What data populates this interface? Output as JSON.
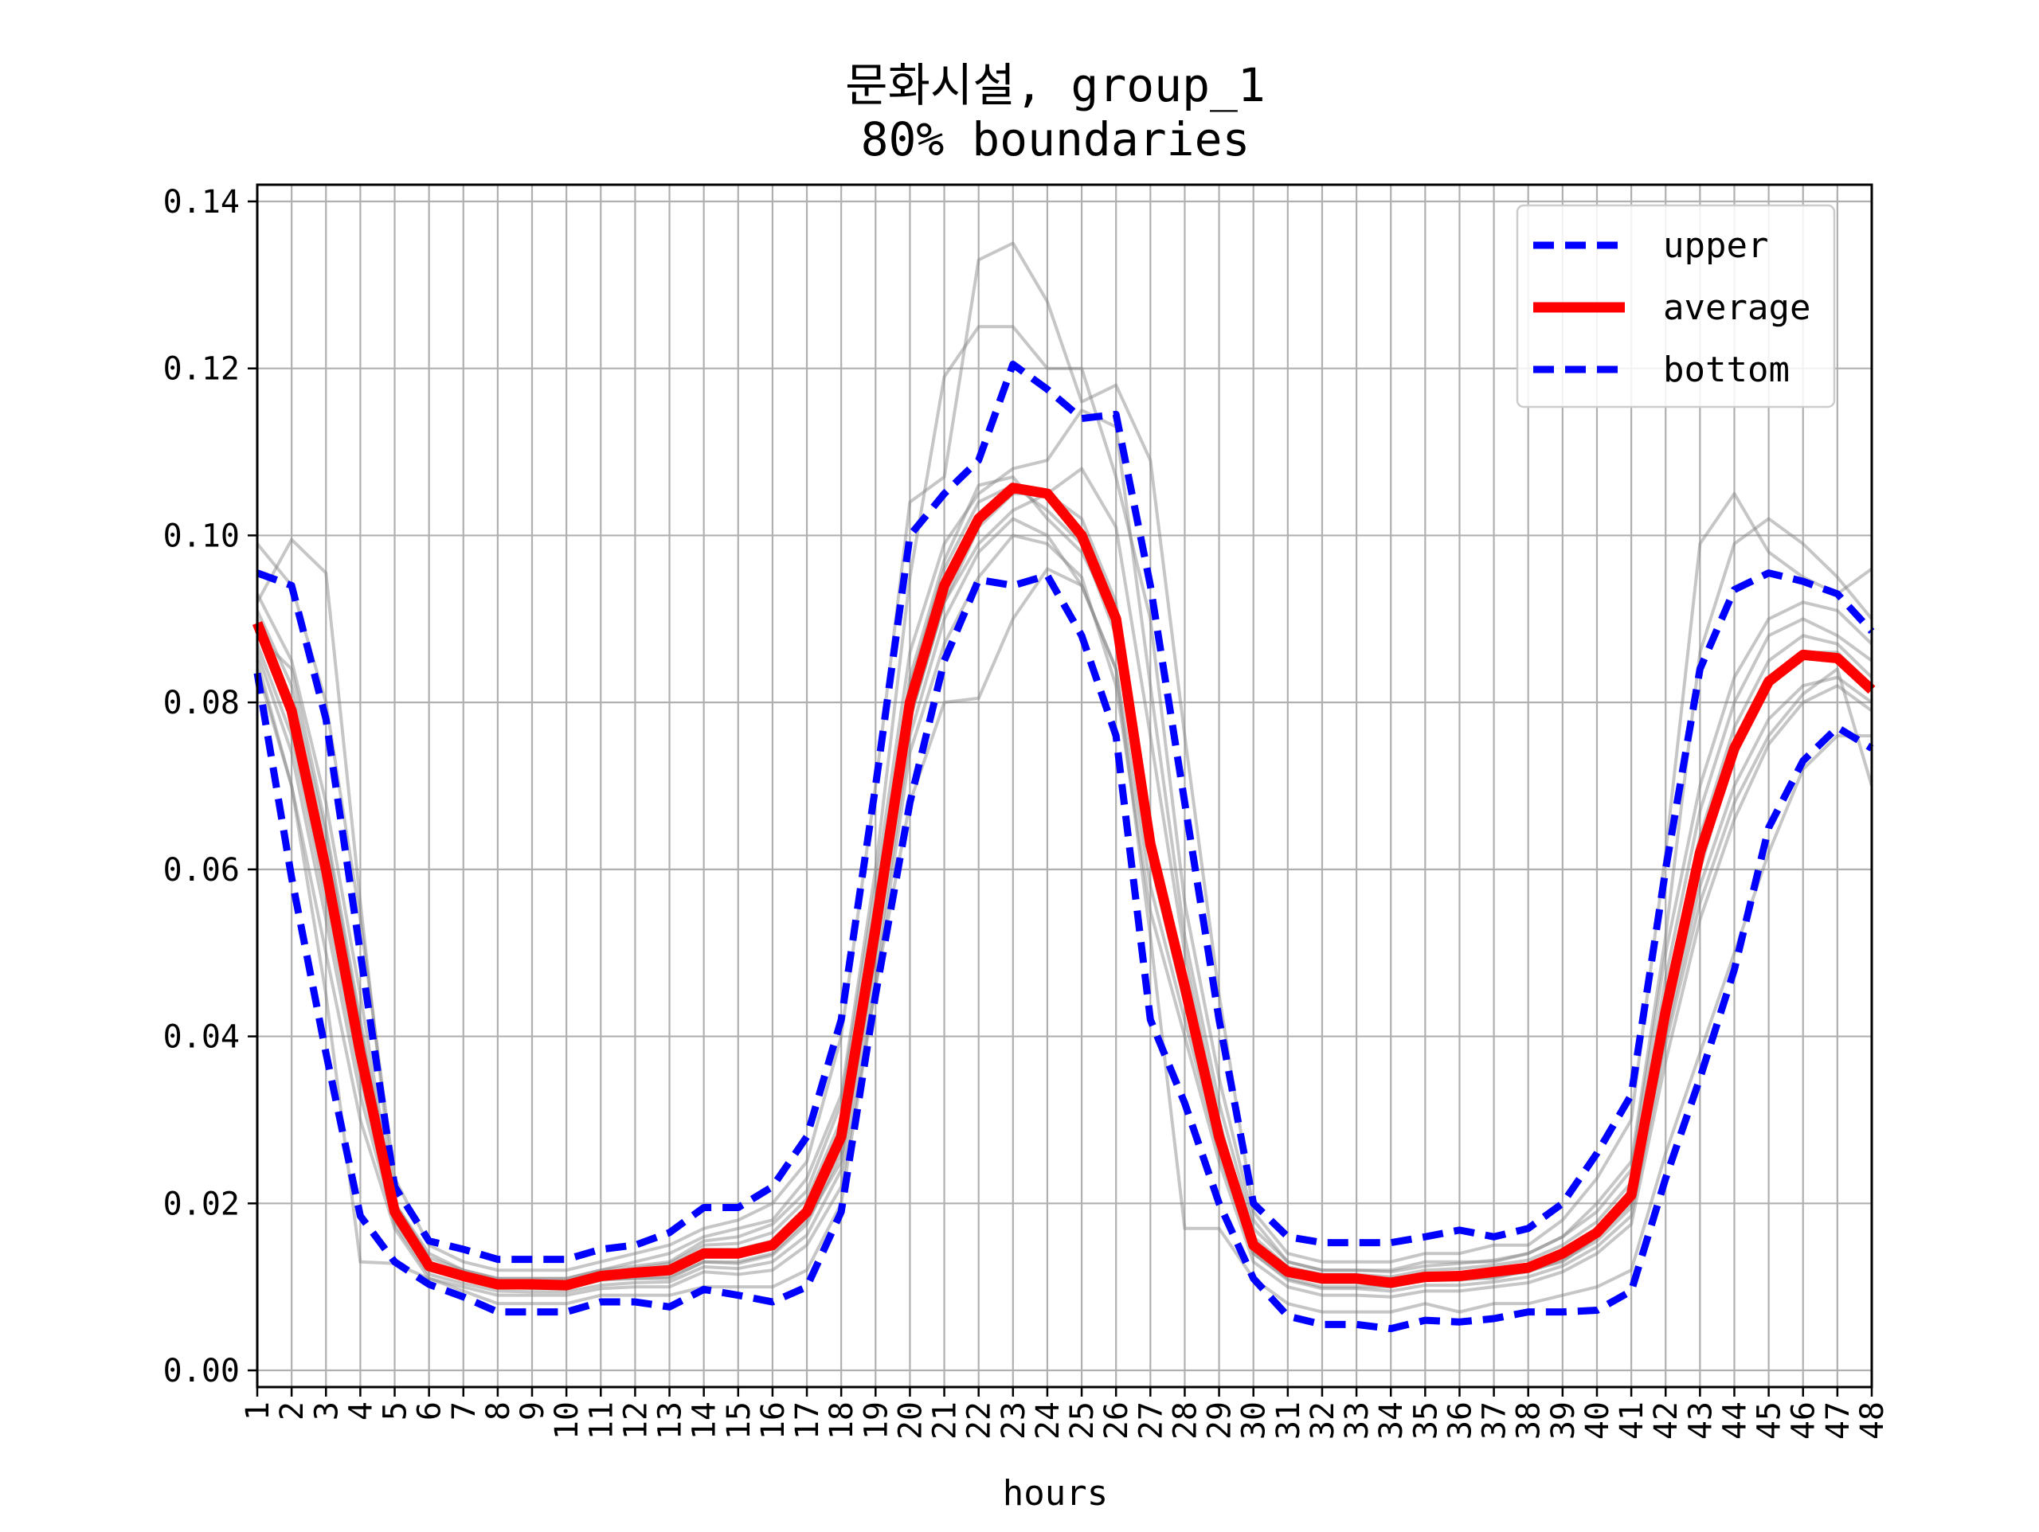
{
  "chart_data": {
    "type": "line",
    "title": "문화시설, group_1",
    "subtitle": "80% boundaries",
    "xlabel": "hours",
    "ylabel": "",
    "ylim": [
      -0.002,
      0.142
    ],
    "xlim": [
      1,
      48
    ],
    "grid": true,
    "legend_position": "top-right",
    "x": [
      1,
      2,
      3,
      4,
      5,
      6,
      7,
      8,
      9,
      10,
      11,
      12,
      13,
      14,
      15,
      16,
      17,
      18,
      19,
      20,
      21,
      22,
      23,
      24,
      25,
      26,
      27,
      28,
      29,
      30,
      31,
      32,
      33,
      34,
      35,
      36,
      37,
      38,
      39,
      40,
      41,
      42,
      43,
      44,
      45,
      46,
      47,
      48
    ],
    "x_tick_labels": [
      "1",
      "2",
      "3",
      "4",
      "5",
      "6",
      "7",
      "8",
      "9",
      "10",
      "11",
      "12",
      "13",
      "14",
      "15",
      "16",
      "17",
      "18",
      "19",
      "20",
      "21",
      "22",
      "23",
      "24",
      "25",
      "26",
      "27",
      "28",
      "29",
      "30",
      "31",
      "32",
      "33",
      "34",
      "35",
      "36",
      "37",
      "38",
      "39",
      "40",
      "41",
      "42",
      "43",
      "44",
      "45",
      "46",
      "47",
      "48"
    ],
    "y_ticks": [
      0.0,
      0.02,
      0.04,
      0.06,
      0.08,
      0.1,
      0.12,
      0.14
    ],
    "y_tick_labels": [
      "0.00",
      "0.02",
      "0.04",
      "0.06",
      "0.08",
      "0.10",
      "0.12",
      "0.14"
    ],
    "series": [
      {
        "name": "upper",
        "color": "#0000ff",
        "style": "dashed",
        "values": [
          0.0955,
          0.094,
          0.078,
          0.05,
          0.022,
          0.0155,
          0.0145,
          0.0133,
          0.0133,
          0.0133,
          0.0145,
          0.015,
          0.0165,
          0.0195,
          0.0195,
          0.022,
          0.028,
          0.042,
          0.07,
          0.1,
          0.105,
          0.109,
          0.1205,
          0.1175,
          0.114,
          0.1145,
          0.094,
          0.068,
          0.042,
          0.02,
          0.016,
          0.0153,
          0.0153,
          0.0153,
          0.016,
          0.0168,
          0.016,
          0.017,
          0.02,
          0.026,
          0.033,
          0.06,
          0.084,
          0.0935,
          0.0955,
          0.0945,
          0.093,
          0.0885
        ]
      },
      {
        "name": "average",
        "color": "#ff0000",
        "style": "solid",
        "values": [
          0.0895,
          0.079,
          0.06,
          0.038,
          0.019,
          0.0125,
          0.0113,
          0.0103,
          0.0103,
          0.0102,
          0.0113,
          0.0117,
          0.012,
          0.014,
          0.014,
          0.015,
          0.019,
          0.028,
          0.053,
          0.08,
          0.094,
          0.102,
          0.1057,
          0.105,
          0.1,
          0.09,
          0.063,
          0.046,
          0.028,
          0.015,
          0.0118,
          0.011,
          0.011,
          0.0105,
          0.0112,
          0.0113,
          0.0118,
          0.0123,
          0.014,
          0.0165,
          0.021,
          0.043,
          0.062,
          0.0745,
          0.0825,
          0.0857,
          0.0853,
          0.0815
        ]
      },
      {
        "name": "bottom",
        "color": "#0000ff",
        "style": "dashed",
        "values": [
          0.0835,
          0.059,
          0.038,
          0.0185,
          0.013,
          0.0103,
          0.0088,
          0.007,
          0.007,
          0.007,
          0.0082,
          0.0082,
          0.0076,
          0.0097,
          0.009,
          0.0082,
          0.01,
          0.019,
          0.045,
          0.068,
          0.085,
          0.0947,
          0.094,
          0.0952,
          0.088,
          0.076,
          0.042,
          0.032,
          0.02,
          0.011,
          0.0065,
          0.0055,
          0.0055,
          0.005,
          0.006,
          0.0058,
          0.0062,
          0.007,
          0.007,
          0.0072,
          0.0095,
          0.023,
          0.035,
          0.048,
          0.065,
          0.073,
          0.077,
          0.0745
        ]
      }
    ],
    "background_series_color": "#808080",
    "background_series": [
      [
        0.099,
        0.094,
        0.08,
        0.054,
        0.023,
        0.015,
        0.013,
        0.012,
        0.012,
        0.012,
        0.013,
        0.014,
        0.015,
        0.017,
        0.018,
        0.02,
        0.025,
        0.04,
        0.07,
        0.104,
        0.107,
        0.133,
        0.135,
        0.128,
        0.116,
        0.118,
        0.109,
        0.076,
        0.045,
        0.019,
        0.014,
        0.013,
        0.013,
        0.013,
        0.014,
        0.014,
        0.015,
        0.015,
        0.018,
        0.023,
        0.03,
        0.062,
        0.099,
        0.105,
        0.098,
        0.095,
        0.093,
        0.096
      ],
      [
        0.092,
        0.0995,
        0.0955,
        0.056,
        0.02,
        0.014,
        0.012,
        0.011,
        0.011,
        0.011,
        0.012,
        0.013,
        0.014,
        0.016,
        0.017,
        0.018,
        0.023,
        0.033,
        0.06,
        0.095,
        0.119,
        0.125,
        0.125,
        0.12,
        0.12,
        0.107,
        0.09,
        0.056,
        0.035,
        0.018,
        0.013,
        0.012,
        0.012,
        0.012,
        0.013,
        0.013,
        0.013,
        0.014,
        0.016,
        0.02,
        0.025,
        0.052,
        0.086,
        0.099,
        0.102,
        0.099,
        0.095,
        0.09
      ],
      [
        0.088,
        0.084,
        0.065,
        0.042,
        0.02,
        0.012,
        0.011,
        0.01,
        0.01,
        0.01,
        0.011,
        0.011,
        0.011,
        0.013,
        0.013,
        0.014,
        0.018,
        0.025,
        0.05,
        0.078,
        0.092,
        0.101,
        0.105,
        0.105,
        0.102,
        0.092,
        0.062,
        0.045,
        0.027,
        0.014,
        0.011,
        0.01,
        0.01,
        0.01,
        0.011,
        0.011,
        0.011,
        0.012,
        0.013,
        0.016,
        0.02,
        0.042,
        0.06,
        0.074,
        0.082,
        0.086,
        0.086,
        0.082
      ],
      [
        0.085,
        0.07,
        0.045,
        0.013,
        0.0128,
        0.011,
        0.0095,
        0.008,
        0.008,
        0.008,
        0.009,
        0.009,
        0.009,
        0.01,
        0.01,
        0.01,
        0.012,
        0.02,
        0.046,
        0.068,
        0.08,
        0.0805,
        0.09,
        0.096,
        0.094,
        0.084,
        0.052,
        0.017,
        0.017,
        0.011,
        0.008,
        0.007,
        0.007,
        0.007,
        0.008,
        0.007,
        0.008,
        0.008,
        0.009,
        0.01,
        0.012,
        0.026,
        0.038,
        0.05,
        0.062,
        0.072,
        0.076,
        0.076
      ],
      [
        0.09,
        0.08,
        0.06,
        0.038,
        0.019,
        0.013,
        0.0115,
        0.0105,
        0.0105,
        0.0105,
        0.0115,
        0.012,
        0.0125,
        0.0145,
        0.0145,
        0.0155,
        0.0195,
        0.029,
        0.054,
        0.082,
        0.096,
        0.104,
        0.106,
        0.103,
        0.099,
        0.088,
        0.061,
        0.044,
        0.027,
        0.015,
        0.012,
        0.011,
        0.011,
        0.011,
        0.0115,
        0.0115,
        0.012,
        0.0125,
        0.0145,
        0.017,
        0.0215,
        0.045,
        0.064,
        0.077,
        0.085,
        0.088,
        0.087,
        0.083
      ],
      [
        0.087,
        0.076,
        0.056,
        0.035,
        0.018,
        0.012,
        0.011,
        0.01,
        0.0098,
        0.0098,
        0.0108,
        0.011,
        0.0112,
        0.013,
        0.0128,
        0.0138,
        0.0175,
        0.026,
        0.05,
        0.078,
        0.092,
        0.099,
        0.103,
        0.105,
        0.108,
        0.101,
        0.076,
        0.05,
        0.03,
        0.015,
        0.0115,
        0.0105,
        0.0105,
        0.01,
        0.0108,
        0.0108,
        0.0112,
        0.0118,
        0.0132,
        0.0155,
        0.0195,
        0.04,
        0.058,
        0.07,
        0.078,
        0.082,
        0.083,
        0.08
      ],
      [
        0.093,
        0.085,
        0.068,
        0.045,
        0.02,
        0.0135,
        0.012,
        0.011,
        0.011,
        0.011,
        0.012,
        0.0125,
        0.013,
        0.0155,
        0.016,
        0.0175,
        0.0215,
        0.032,
        0.058,
        0.086,
        0.099,
        0.105,
        0.108,
        0.109,
        0.115,
        0.113,
        0.082,
        0.052,
        0.032,
        0.017,
        0.013,
        0.012,
        0.012,
        0.0118,
        0.0125,
        0.0128,
        0.0132,
        0.014,
        0.016,
        0.019,
        0.024,
        0.05,
        0.07,
        0.083,
        0.09,
        0.092,
        0.091,
        0.087
      ],
      [
        0.084,
        0.07,
        0.05,
        0.03,
        0.017,
        0.011,
        0.01,
        0.009,
        0.009,
        0.009,
        0.0098,
        0.01,
        0.01,
        0.0118,
        0.0115,
        0.012,
        0.015,
        0.022,
        0.046,
        0.074,
        0.087,
        0.095,
        0.1,
        0.099,
        0.095,
        0.082,
        0.055,
        0.04,
        0.025,
        0.013,
        0.01,
        0.009,
        0.009,
        0.0088,
        0.0095,
        0.0095,
        0.01,
        0.0105,
        0.0118,
        0.014,
        0.0175,
        0.037,
        0.054,
        0.066,
        0.075,
        0.08,
        0.082,
        0.079
      ],
      [
        0.091,
        0.082,
        0.064,
        0.041,
        0.0195,
        0.0128,
        0.0116,
        0.0106,
        0.0106,
        0.0106,
        0.0116,
        0.0122,
        0.0128,
        0.015,
        0.0152,
        0.0165,
        0.0205,
        0.03,
        0.056,
        0.083,
        0.097,
        0.106,
        0.107,
        0.102,
        0.098,
        0.09,
        0.065,
        0.047,
        0.029,
        0.016,
        0.0124,
        0.0115,
        0.0115,
        0.0112,
        0.012,
        0.0122,
        0.0126,
        0.0132,
        0.015,
        0.0178,
        0.0225,
        0.047,
        0.067,
        0.08,
        0.088,
        0.09,
        0.088,
        0.085
      ],
      [
        0.086,
        0.074,
        0.054,
        0.033,
        0.0175,
        0.0115,
        0.0104,
        0.0095,
        0.0094,
        0.0094,
        0.0102,
        0.0105,
        0.0106,
        0.0124,
        0.0122,
        0.013,
        0.0162,
        0.024,
        0.048,
        0.076,
        0.09,
        0.098,
        0.102,
        0.1,
        0.094,
        0.084,
        0.058,
        0.042,
        0.026,
        0.014,
        0.0108,
        0.0098,
        0.0098,
        0.0095,
        0.0102,
        0.0102,
        0.0106,
        0.0112,
        0.0125,
        0.0148,
        0.0185,
        0.039,
        0.056,
        0.068,
        0.076,
        0.081,
        0.084,
        0.07
      ]
    ],
    "legend": [
      {
        "label": "upper",
        "color": "#0000ff",
        "style": "dashed"
      },
      {
        "label": "average",
        "color": "#ff0000",
        "style": "solid"
      },
      {
        "label": "bottom",
        "color": "#0000ff",
        "style": "dashed"
      }
    ]
  }
}
